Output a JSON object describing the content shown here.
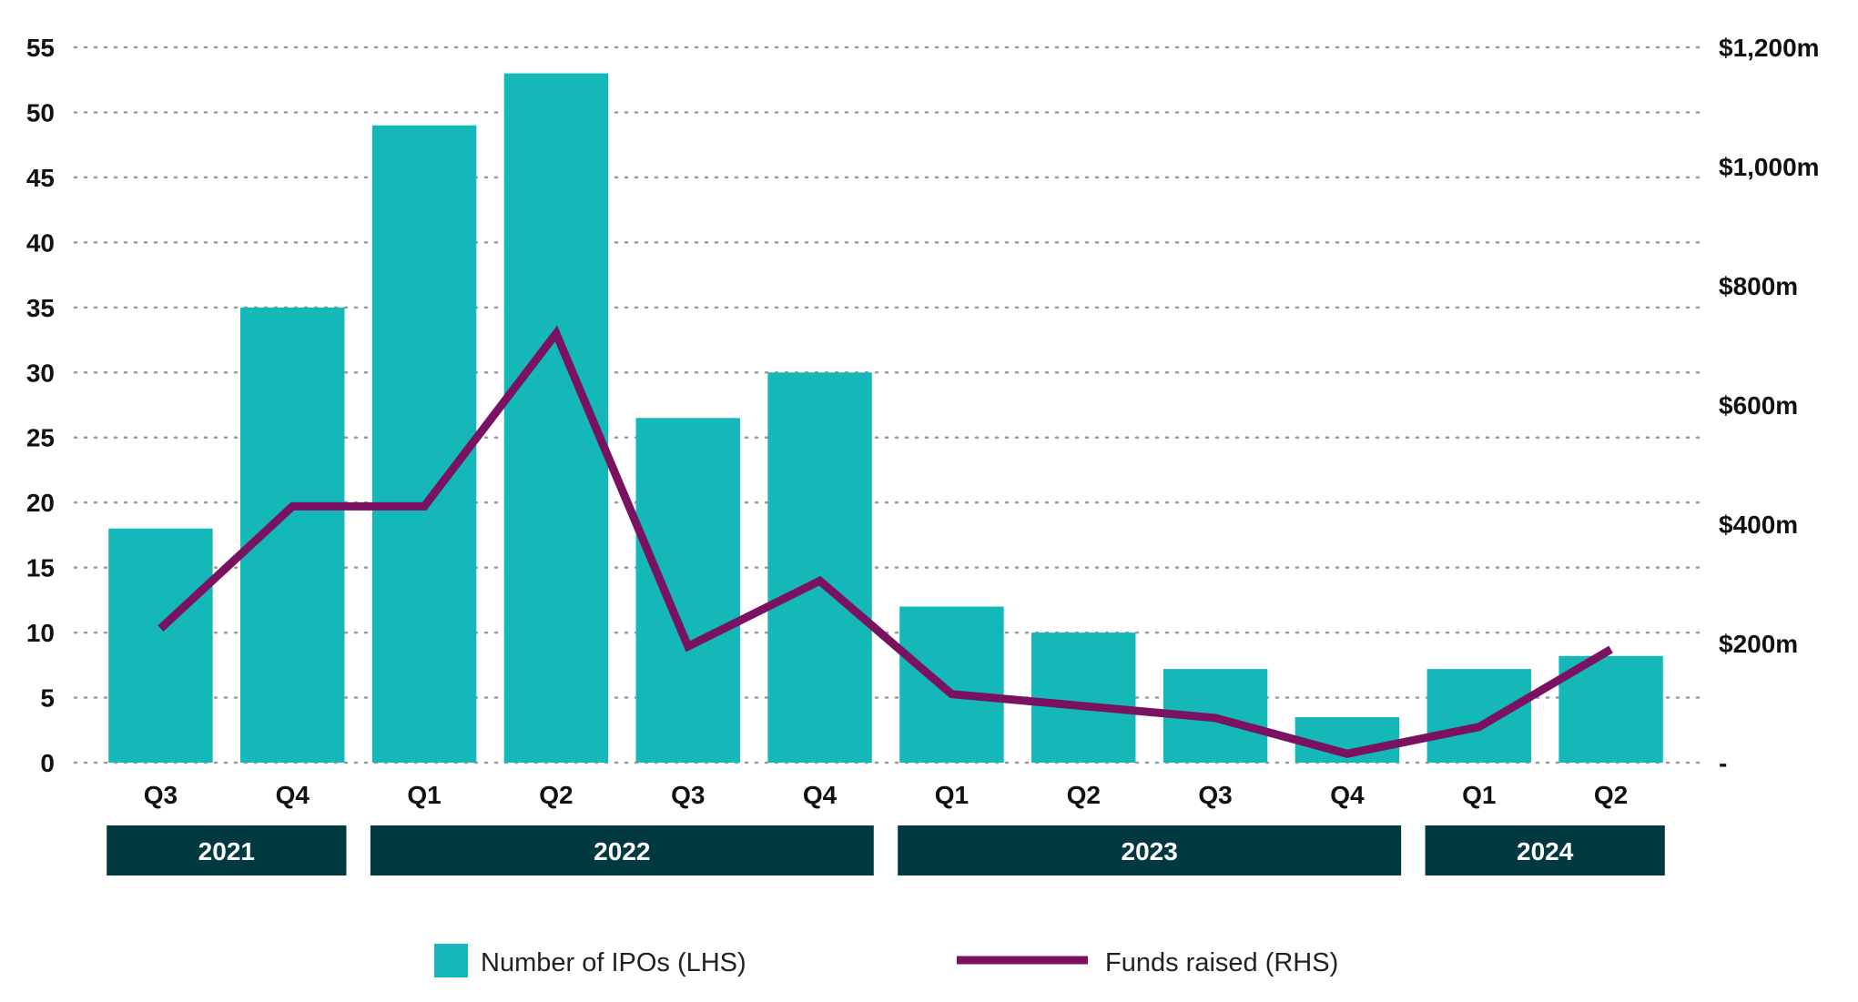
{
  "chart_data": {
    "type": "bar",
    "categories": [
      "Q3",
      "Q4",
      "Q1",
      "Q2",
      "Q3",
      "Q4",
      "Q1",
      "Q2",
      "Q3",
      "Q4",
      "Q1",
      "Q2"
    ],
    "year_groups": [
      {
        "label": "2021",
        "quarters": [
          "Q3",
          "Q4"
        ]
      },
      {
        "label": "2022",
        "quarters": [
          "Q1",
          "Q2",
          "Q3",
          "Q4"
        ]
      },
      {
        "label": "2023",
        "quarters": [
          "Q1",
          "Q2",
          "Q3",
          "Q4"
        ]
      },
      {
        "label": "2024",
        "quarters": [
          "Q1",
          "Q2"
        ]
      }
    ],
    "series": [
      {
        "name": "Number of IPOs (LHS)",
        "type": "bar",
        "axis": "left",
        "color": "#14b8b8",
        "values": [
          18,
          35,
          49,
          53,
          26.5,
          30,
          12,
          10,
          7.2,
          3.5,
          7.2,
          8.2
        ]
      },
      {
        "name": "Funds raised (RHS)",
        "type": "line",
        "axis": "right",
        "color": "#7a1161",
        "values": [
          225,
          430,
          430,
          720,
          195,
          305,
          115,
          95,
          75,
          15,
          60,
          190
        ]
      }
    ],
    "y_left": {
      "min": 0,
      "max": 55,
      "ticks": [
        0,
        5,
        10,
        15,
        20,
        25,
        30,
        35,
        40,
        45,
        50,
        55
      ]
    },
    "y_right": {
      "min": 0,
      "max": 1200,
      "ticks": [
        0,
        200,
        400,
        600,
        800,
        1000,
        1200
      ],
      "tick_labels": [
        "-",
        "$200m",
        "$400m",
        "$600m",
        "$800m",
        "$1,000m",
        "$1,200m"
      ]
    },
    "grid": "dotted-horizontal",
    "legend_position": "bottom",
    "year_band_color": "#003a40"
  },
  "legend": {
    "bars_label": "Number of IPOs (LHS)",
    "line_label": "Funds raised (RHS)"
  }
}
